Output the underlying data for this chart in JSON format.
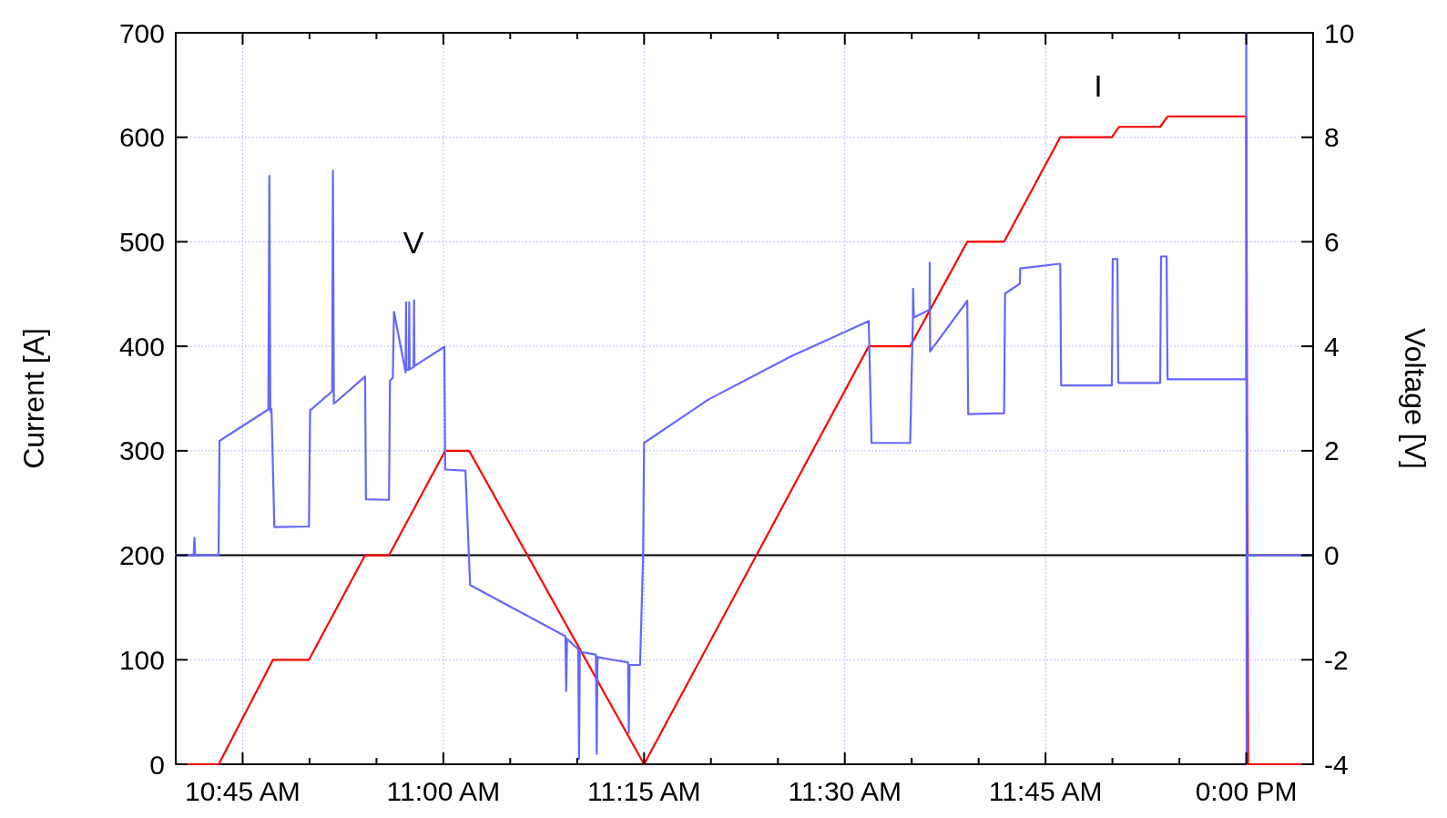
{
  "chart_data": {
    "type": "line",
    "ylabel": "Current [A]",
    "y2label": "Voltage [V]",
    "xlim": [
      10.6667,
      12.0833
    ],
    "xticks": [
      {
        "value": 10.75,
        "label": "10:45 AM"
      },
      {
        "value": 10.8333,
        "label": null
      },
      {
        "value": 10.9167,
        "label": null
      },
      {
        "value": 11,
        "label": "11:00 AM"
      },
      {
        "value": 11.0833,
        "label": null
      },
      {
        "value": 11.1667,
        "label": null
      },
      {
        "value": 11.25,
        "label": "11:15 AM"
      },
      {
        "value": 11.3333,
        "label": null
      },
      {
        "value": 11.4167,
        "label": null
      },
      {
        "value": 11.5,
        "label": "11:30 AM"
      },
      {
        "value": 11.5833,
        "label": null
      },
      {
        "value": 11.6667,
        "label": null
      },
      {
        "value": 11.75,
        "label": "11:45 AM"
      },
      {
        "value": 11.8333,
        "label": null
      },
      {
        "value": 11.9167,
        "label": null
      },
      {
        "value": 12,
        "label": "0:00 PM"
      }
    ],
    "ylim": [
      0,
      700
    ],
    "yticks": [
      0,
      100,
      200,
      300,
      400,
      500,
      600,
      700
    ],
    "y2lim": [
      -4,
      10
    ],
    "y2ticks": [
      -4,
      -2,
      0,
      2,
      4,
      6,
      8,
      10
    ],
    "grid": true,
    "ref_lines": [
      {
        "axis": "y2",
        "value": 0,
        "color": "#000000"
      }
    ],
    "annotations": [
      "V",
      "I"
    ],
    "series": [
      {
        "color": "#ff0000",
        "x": [
          10.6667,
          10.7202,
          10.7878,
          10.8326,
          10.9025,
          10.9323,
          11.0023,
          11.0321,
          11.25,
          11.5298,
          11.5814,
          11.6525,
          11.6984,
          11.7683,
          11.8326,
          11.8417,
          11.8928,
          11.902,
          12.0,
          12.0023,
          12.0803
        ],
        "values": [
          0,
          0,
          100,
          100,
          200,
          200,
          300,
          300,
          0,
          400,
          400,
          500,
          500,
          600,
          600,
          610,
          610,
          620,
          620,
          0,
          0
        ]
      },
      {
        "color": "#6666ff",
        "axis": "y2",
        "x": [
          10.6667,
          10.689,
          10.69,
          10.691,
          10.72,
          10.7212,
          10.782,
          10.7833,
          10.7845,
          10.786,
          10.7895,
          10.8326,
          10.834,
          10.8615,
          10.8625,
          10.8636,
          10.9025,
          10.9036,
          10.9323,
          10.9335,
          10.937,
          10.9385,
          10.953,
          10.9535,
          10.954,
          10.957,
          10.9575,
          10.958,
          10.963,
          10.9635,
          10.964,
          11.0012,
          11.0023,
          11.0275,
          11.0333,
          11.152,
          11.153,
          11.154,
          11.168,
          11.169,
          11.17,
          11.19,
          11.191,
          11.192,
          11.21,
          11.23,
          11.231,
          11.232,
          11.245,
          11.2488,
          11.25,
          11.33,
          11.4335,
          11.5298,
          11.5333,
          11.5814,
          11.5848,
          11.585,
          11.586,
          11.6055,
          11.6058,
          11.6062,
          11.6525,
          11.6537,
          11.6984,
          11.6996,
          11.718,
          11.7185,
          11.7683,
          11.7695,
          11.8326,
          11.8337,
          11.8395,
          11.8406,
          11.8928,
          11.8939,
          11.9008,
          11.902,
          11.9998,
          12.0,
          12.0005,
          12.001,
          12.0023,
          12.0803
        ],
        "values": [
          0,
          0,
          0.33,
          0,
          0,
          2.19,
          2.79,
          7.26,
          2.75,
          2.8,
          0.54,
          0.55,
          2.77,
          3.14,
          7.36,
          2.9,
          3.42,
          1.07,
          1.06,
          3.34,
          3.4,
          4.66,
          3.5,
          4.84,
          3.55,
          3.55,
          4.84,
          3.56,
          3.6,
          4.88,
          3.62,
          3.99,
          1.64,
          1.62,
          -0.57,
          -1.55,
          -2.6,
          -1.6,
          -1.8,
          -3.9,
          -1.85,
          -1.9,
          -3.8,
          -1.95,
          -2.0,
          -2.05,
          -3.4,
          -2.1,
          -2.1,
          0,
          2.15,
          2.98,
          3.81,
          4.48,
          2.15,
          2.15,
          4.52,
          5.1,
          4.55,
          4.7,
          5.6,
          3.9,
          4.87,
          2.7,
          2.72,
          5.01,
          5.2,
          5.49,
          5.58,
          3.25,
          3.25,
          5.67,
          5.67,
          3.3,
          3.3,
          5.72,
          5.72,
          3.37,
          3.37,
          10,
          -4,
          0,
          0,
          0
        ]
      }
    ]
  }
}
